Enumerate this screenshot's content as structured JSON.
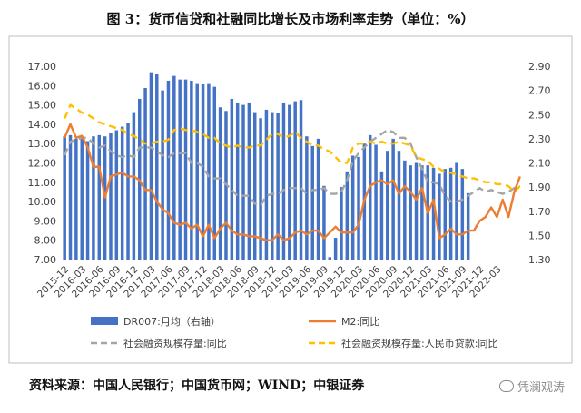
{
  "title": "图 3：货币信贷和社融同比增长及市场利率走势（单位：%）",
  "source": "资料来源：中国人民银行；中国货币网；WIND；中银证券",
  "watermark": "凭澜观涛",
  "colors": {
    "bars": "#4472C4",
    "m2": "#ED7D31",
    "social_financing": "#A5A5A5",
    "rmb_loans": "#FFC000",
    "plot_border": "#bfbfbf"
  },
  "chart_data": {
    "type": "bar+line",
    "x_tick_labels": [
      "2015-12",
      "2016-03",
      "2016-06",
      "2016-09",
      "2016-12",
      "2017-03",
      "2017-06",
      "2017-09",
      "2017-12",
      "2018-03",
      "2018-06",
      "2018-09",
      "2018-12",
      "2019-03",
      "2019-06",
      "2019-09",
      "2019-12",
      "2020-03",
      "2020-06",
      "2020-09",
      "2020-12",
      "2021-03",
      "2021-06",
      "2021-09",
      "2021-12",
      "2022-03"
    ],
    "start_month": "2015-12",
    "left_axis": {
      "min": 7.0,
      "max": 17.0,
      "step": 1.0,
      "tick_labels": [
        "7.00",
        "8.00",
        "9.00",
        "10.00",
        "11.00",
        "12.00",
        "13.00",
        "14.00",
        "15.00",
        "16.00",
        "17.00"
      ]
    },
    "right_axis": {
      "min": 1.3,
      "max": 2.9,
      "step": 0.2,
      "tick_labels": [
        "1.30",
        "1.50",
        "1.70",
        "1.90",
        "2.10",
        "2.30",
        "2.50",
        "2.70",
        "2.90"
      ]
    },
    "series": [
      {
        "name": "DR007:月均（右轴）",
        "type": "bar",
        "axis": "right",
        "values": [
          2.32,
          2.33,
          2.3,
          2.3,
          2.28,
          2.32,
          2.33,
          2.32,
          2.35,
          2.37,
          2.4,
          2.43,
          2.52,
          2.63,
          2.72,
          2.85,
          2.84,
          2.7,
          2.78,
          2.82,
          2.79,
          2.79,
          2.78,
          2.76,
          2.75,
          2.76,
          2.73,
          2.56,
          2.53,
          2.63,
          2.6,
          2.58,
          2.6,
          2.52,
          2.47,
          2.54,
          2.52,
          2.51,
          2.6,
          2.58,
          2.61,
          2.62,
          2.32,
          2.24,
          2.3,
          1.91,
          1.32,
          1.48,
          1.9,
          2.03,
          2.16,
          2.15,
          2.26,
          2.33,
          2.25,
          2.03,
          2.2,
          2.3,
          2.2,
          2.12,
          2.08,
          2.1,
          2.08,
          2.08,
          2.06,
          2.01,
          2.05,
          2.06,
          2.1,
          2.05,
          1.85
        ]
      },
      {
        "name": "M2:同比",
        "type": "line",
        "axis": "left",
        "values": [
          13.3,
          14.0,
          13.3,
          13.4,
          12.8,
          11.8,
          11.8,
          10.2,
          11.3,
          11.4,
          11.5,
          11.3,
          11.3,
          11.1,
          10.6,
          10.6,
          10.0,
          9.6,
          9.4,
          8.9,
          8.8,
          8.9,
          8.6,
          8.8,
          8.2,
          8.8,
          8.1,
          8.6,
          8.9,
          8.5,
          8.3,
          8.3,
          8.2,
          8.2,
          8.1,
          8.0,
          8.0,
          8.3,
          8.0,
          8.1,
          8.4,
          8.5,
          8.3,
          8.5,
          8.5,
          8.1,
          8.4,
          8.7,
          8.4,
          8.4,
          8.4,
          8.8,
          10.1,
          10.8,
          11.0,
          11.1,
          10.9,
          11.1,
          10.4,
          10.8,
          10.5,
          10.1,
          10.7,
          9.4,
          10.1,
          8.1,
          8.3,
          8.6,
          8.3,
          8.3,
          8.5,
          8.5,
          9.0,
          9.2,
          9.7,
          9.2,
          10.1,
          9.2,
          10.5,
          11.3
        ]
      },
      {
        "name": "社会融资规模存量:同比",
        "type": "line",
        "axis": "left",
        "dashed": true,
        "values": [
          12.4,
          13.1,
          13.2,
          13.3,
          13.3,
          13.0,
          12.8,
          12.9,
          12.6,
          12.4,
          12.3,
          12.4,
          12.3,
          12.8,
          12.8,
          12.8,
          12.6,
          12.4,
          12.3,
          12.5,
          12.5,
          12.5,
          12.0,
          12.0,
          11.8,
          11.3,
          11.2,
          11.2,
          10.9,
          10.6,
          10.3,
          10.3,
          10.3,
          9.9,
          9.8,
          10.3,
          10.4,
          10.4,
          10.6,
          10.7,
          10.7,
          10.7,
          10.4,
          10.6,
          10.6,
          10.7,
          10.4,
          10.4,
          10.5,
          11.1,
          12.1,
          12.5,
          12.8,
          13.1,
          13.3,
          13.5,
          13.7,
          13.6,
          13.3,
          13.3,
          13.0,
          12.3,
          11.7,
          11.0,
          11.0,
          10.9,
          10.3,
          10.0,
          10.0,
          10.1,
          10.3,
          10.5,
          10.7,
          10.5,
          10.6,
          10.5,
          10.4,
          10.5,
          10.7,
          10.8
        ]
      },
      {
        "name": "社会融资规模存量:人民币贷款:同比",
        "type": "line",
        "axis": "left",
        "dashed": true,
        "values": [
          14.3,
          15.0,
          14.8,
          14.6,
          14.5,
          14.3,
          14.1,
          14.0,
          13.9,
          13.8,
          13.7,
          13.5,
          13.4,
          13.2,
          13.0,
          13.0,
          13.1,
          13.1,
          13.2,
          13.7,
          13.8,
          13.7,
          13.7,
          13.6,
          13.5,
          13.3,
          13.3,
          13.0,
          12.9,
          12.8,
          12.9,
          12.8,
          12.8,
          12.9,
          12.9,
          13.2,
          13.5,
          13.5,
          13.3,
          13.4,
          13.6,
          13.3,
          13.1,
          12.9,
          12.9,
          12.7,
          12.6,
          12.3,
          12.0,
          12.0,
          12.8,
          13.0,
          13.0,
          13.1,
          13.0,
          13.1,
          13.0,
          13.0,
          13.1,
          13.0,
          12.9,
          12.3,
          12.2,
          12.1,
          11.8,
          11.7,
          11.5,
          11.5,
          11.4,
          11.3,
          11.2,
          11.2,
          11.1,
          11.0,
          11.0,
          10.9,
          10.9,
          10.8,
          10.5,
          10.8
        ]
      }
    ],
    "legend": {
      "position": "bottom",
      "items": [
        "DR007:月均（右轴）",
        "M2:同比",
        "社会融资规模存量:同比",
        "社会融资规模存量:人民币贷款:同比"
      ]
    }
  }
}
